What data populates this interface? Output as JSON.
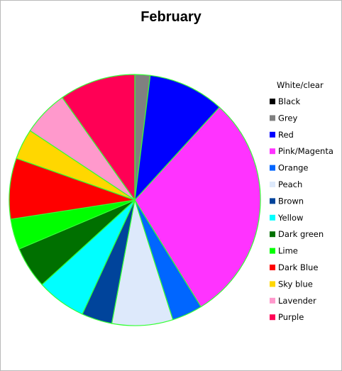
{
  "chart_data": {
    "type": "pie",
    "title": "February",
    "legend_position": "right",
    "legend_header": "White/clear",
    "slices": [
      {
        "label": "Black",
        "value": 0,
        "color": "#000000"
      },
      {
        "label": "Grey",
        "value": 2,
        "color": "#808080"
      },
      {
        "label": "Red",
        "value": 10,
        "color": "#0000ff"
      },
      {
        "label": "Pink/Magenta",
        "value": 30,
        "color": "#ff33ff"
      },
      {
        "label": "Orange",
        "value": 4,
        "color": "#0066ff"
      },
      {
        "label": "Peach",
        "value": 8,
        "color": "#dde9fb"
      },
      {
        "label": "Brown",
        "value": 4,
        "color": "#00449b"
      },
      {
        "label": "Yellow",
        "value": 6.5,
        "color": "#00ffff"
      },
      {
        "label": "Dark green",
        "value": 5.5,
        "color": "#007000"
      },
      {
        "label": "Lime",
        "value": 4,
        "color": "#00ff00"
      },
      {
        "label": "Dark Blue",
        "value": 8,
        "color": "#ff0000"
      },
      {
        "label": "Sky blue",
        "value": 4,
        "color": "#ffd700"
      },
      {
        "label": "Lavender",
        "value": 6,
        "color": "#ff99cc"
      },
      {
        "label": "Purple",
        "value": 10,
        "color": "#ff0055"
      }
    ],
    "slice_border_color": "#33ff33"
  }
}
